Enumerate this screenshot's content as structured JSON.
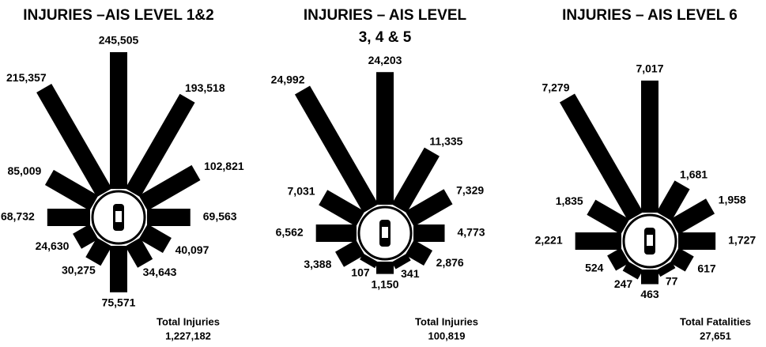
{
  "chart_data": [
    {
      "type": "radial-bar",
      "title": [
        "INJURIES –AIS LEVEL 1&2"
      ],
      "values": [
        245505,
        193518,
        102821,
        69563,
        40097,
        34643,
        75571,
        30275,
        24630,
        68732,
        85009,
        215357
      ],
      "value_labels": [
        "245,505",
        "193,518",
        "102,821",
        "69,563",
        "40,097",
        "34,643",
        "75,571",
        "30,275",
        "24,630",
        "68,732",
        "85,009",
        "215,357"
      ],
      "total_label": "Total Injuries",
      "total": 1227182,
      "total_value_label": "1,227,182",
      "color": "#000000"
    },
    {
      "type": "radial-bar",
      "title": [
        "INJURIES – AIS LEVEL",
        "3, 4 & 5"
      ],
      "values": [
        24203,
        11335,
        7329,
        4773,
        2876,
        341,
        1150,
        107,
        3388,
        6562,
        7031,
        24992
      ],
      "value_labels": [
        "24,203",
        "11,335",
        "7,329",
        "4,773",
        "2,876",
        "341",
        "1,150",
        "107",
        "3,388",
        "6,562",
        "7,031",
        "24,992"
      ],
      "total_label": "Total Injuries",
      "total": 100819,
      "total_value_label": "100,819",
      "color": "#000000"
    },
    {
      "type": "radial-bar",
      "title": [
        "INJURIES – AIS LEVEL 6"
      ],
      "values": [
        7017,
        1681,
        1958,
        1727,
        617,
        77,
        463,
        247,
        524,
        2221,
        1835,
        7279
      ],
      "value_labels": [
        "7,017",
        "1,681",
        "1,958",
        "1,727",
        "617",
        "77",
        "463",
        "247",
        "524",
        "2,221",
        "1,835",
        "7,279"
      ],
      "total_label": "Total Fatalities",
      "total": 27651,
      "total_value_label": "27,651",
      "color": "#000000"
    }
  ]
}
